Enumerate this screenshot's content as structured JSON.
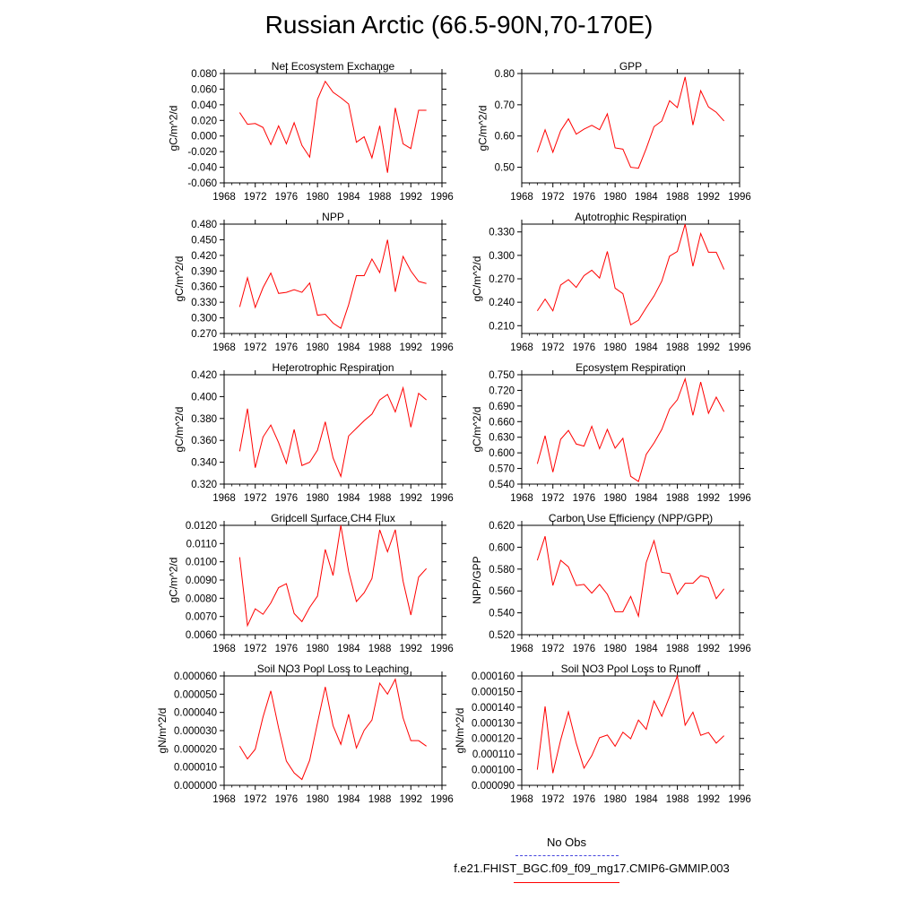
{
  "title": "Russian Arctic (66.5-90N,70-170E)",
  "legend": {
    "obs_label": "No Obs",
    "run_label": "f.e21.FHIST_BGC.f09_f09_mg17.CMIP6-GMMIP.003",
    "run_color": "#ff0000",
    "obs_color": "#4444dd"
  },
  "chart_data": [
    {
      "type": "line",
      "title": "Net Ecosystem Exchange",
      "ylabel": "gC/m^2/d",
      "xlim": [
        1968,
        1996
      ],
      "ylim": [
        -0.06,
        0.08
      ],
      "xticks": [
        "1968",
        "1972",
        "1976",
        "1980",
        "1984",
        "1988",
        "1992",
        "1996"
      ],
      "yticks": [
        "0.080",
        "0.060",
        "0.040",
        "0.020",
        "0.000",
        "-0.020",
        "-0.040",
        "-0.060"
      ],
      "x": [
        1970,
        1971,
        1972,
        1973,
        1974,
        1975,
        1976,
        1977,
        1978,
        1979,
        1980,
        1981,
        1982,
        1983,
        1984,
        1985,
        1986,
        1987,
        1988,
        1989,
        1990,
        1991,
        1992,
        1993,
        1994
      ],
      "series": [
        {
          "name": "f.e21.FHIST_BGC.f09_f09_mg17.CMIP6-GMMIP.003",
          "values": [
            0.03,
            0.015,
            0.016,
            0.011,
            -0.011,
            0.013,
            -0.01,
            0.017,
            -0.012,
            -0.027,
            0.047,
            0.07,
            0.056,
            0.049,
            0.041,
            -0.008,
            -0.001,
            -0.028,
            0.013,
            -0.047,
            0.036,
            -0.01,
            -0.016,
            0.033,
            0.033
          ]
        }
      ]
    },
    {
      "type": "line",
      "title": "GPP",
      "ylabel": "gC/m^2/d",
      "xlim": [
        1968,
        1996
      ],
      "ylim": [
        0.45,
        0.8
      ],
      "xticks": [
        "1968",
        "1972",
        "1976",
        "1980",
        "1984",
        "1988",
        "1992",
        "1996"
      ],
      "yticks": [
        "0.80",
        "0.70",
        "0.60",
        "0.50"
      ],
      "x": [
        1970,
        1971,
        1972,
        1973,
        1974,
        1975,
        1976,
        1977,
        1978,
        1979,
        1980,
        1981,
        1982,
        1983,
        1984,
        1985,
        1986,
        1987,
        1988,
        1989,
        1990,
        1991,
        1992,
        1993,
        1994
      ],
      "series": [
        {
          "name": "f.e21.FHIST_BGC.f09_f09_mg17.CMIP6-GMMIP.003",
          "values": [
            0.548,
            0.62,
            0.548,
            0.617,
            0.655,
            0.606,
            0.622,
            0.634,
            0.62,
            0.671,
            0.562,
            0.558,
            0.5,
            0.497,
            0.56,
            0.63,
            0.648,
            0.713,
            0.691,
            0.789,
            0.635,
            0.745,
            0.693,
            0.676,
            0.648
          ]
        }
      ]
    },
    {
      "type": "line",
      "title": "NPP",
      "ylabel": "gC/m^2/d",
      "xlim": [
        1968,
        1996
      ],
      "ylim": [
        0.27,
        0.48
      ],
      "xticks": [
        "1968",
        "1972",
        "1976",
        "1980",
        "1984",
        "1988",
        "1992",
        "1996"
      ],
      "yticks": [
        "0.480",
        "0.450",
        "0.420",
        "0.390",
        "0.360",
        "0.330",
        "0.300",
        "0.270"
      ],
      "x": [
        1970,
        1971,
        1972,
        1973,
        1974,
        1975,
        1976,
        1977,
        1978,
        1979,
        1980,
        1981,
        1982,
        1983,
        1984,
        1985,
        1986,
        1987,
        1988,
        1989,
        1990,
        1991,
        1992,
        1993,
        1994
      ],
      "series": [
        {
          "name": "f.e21.FHIST_BGC.f09_f09_mg17.CMIP6-GMMIP.003",
          "values": [
            0.321,
            0.377,
            0.32,
            0.358,
            0.386,
            0.347,
            0.349,
            0.354,
            0.349,
            0.367,
            0.305,
            0.307,
            0.29,
            0.28,
            0.325,
            0.381,
            0.381,
            0.413,
            0.387,
            0.45,
            0.35,
            0.418,
            0.39,
            0.37,
            0.366
          ]
        }
      ]
    },
    {
      "type": "line",
      "title": "Autotrophic Respiration",
      "ylabel": "gC/m^2/d",
      "xlim": [
        1968,
        1996
      ],
      "ylim": [
        0.2,
        0.34
      ],
      "xticks": [
        "1968",
        "1972",
        "1976",
        "1980",
        "1984",
        "1988",
        "1992",
        "1996"
      ],
      "yticks": [
        "0.330",
        "0.300",
        "0.270",
        "0.240",
        "0.210"
      ],
      "x": [
        1970,
        1971,
        1972,
        1973,
        1974,
        1975,
        1976,
        1977,
        1978,
        1979,
        1980,
        1981,
        1982,
        1983,
        1984,
        1985,
        1986,
        1987,
        1988,
        1989,
        1990,
        1991,
        1992,
        1993,
        1994
      ],
      "series": [
        {
          "name": "f.e21.FHIST_BGC.f09_f09_mg17.CMIP6-GMMIP.003",
          "values": [
            0.229,
            0.244,
            0.229,
            0.262,
            0.269,
            0.259,
            0.274,
            0.281,
            0.271,
            0.305,
            0.258,
            0.251,
            0.211,
            0.217,
            0.233,
            0.248,
            0.267,
            0.299,
            0.305,
            0.34,
            0.286,
            0.328,
            0.304,
            0.304,
            0.282
          ]
        }
      ]
    },
    {
      "type": "line",
      "title": "Heterotrophic Respiration",
      "ylabel": "gC/m^2/d",
      "xlim": [
        1968,
        1996
      ],
      "ylim": [
        0.32,
        0.42
      ],
      "xticks": [
        "1968",
        "1972",
        "1976",
        "1980",
        "1984",
        "1988",
        "1992",
        "1996"
      ],
      "yticks": [
        "0.420",
        "0.400",
        "0.380",
        "0.360",
        "0.340",
        "0.320"
      ],
      "x": [
        1970,
        1971,
        1972,
        1973,
        1974,
        1975,
        1976,
        1977,
        1978,
        1979,
        1980,
        1981,
        1982,
        1983,
        1984,
        1985,
        1986,
        1987,
        1988,
        1989,
        1990,
        1991,
        1992,
        1993,
        1994
      ],
      "series": [
        {
          "name": "f.e21.FHIST_BGC.f09_f09_mg17.CMIP6-GMMIP.003",
          "values": [
            0.35,
            0.389,
            0.335,
            0.363,
            0.374,
            0.358,
            0.339,
            0.37,
            0.337,
            0.34,
            0.351,
            0.377,
            0.344,
            0.327,
            0.364,
            0.371,
            0.378,
            0.384,
            0.397,
            0.402,
            0.386,
            0.408,
            0.372,
            0.403,
            0.397
          ]
        }
      ]
    },
    {
      "type": "line",
      "title": "Ecosystem Respiration",
      "ylabel": "gC/m^2/d",
      "xlim": [
        1968,
        1996
      ],
      "ylim": [
        0.54,
        0.75
      ],
      "xticks": [
        "1968",
        "1972",
        "1976",
        "1980",
        "1984",
        "1988",
        "1992",
        "1996"
      ],
      "yticks": [
        "0.750",
        "0.720",
        "0.690",
        "0.660",
        "0.630",
        "0.600",
        "0.570",
        "0.540"
      ],
      "x": [
        1970,
        1971,
        1972,
        1973,
        1974,
        1975,
        1976,
        1977,
        1978,
        1979,
        1980,
        1981,
        1982,
        1983,
        1984,
        1985,
        1986,
        1987,
        1988,
        1989,
        1990,
        1991,
        1992,
        1993,
        1994
      ],
      "series": [
        {
          "name": "f.e21.FHIST_BGC.f09_f09_mg17.CMIP6-GMMIP.003",
          "values": [
            0.579,
            0.633,
            0.563,
            0.626,
            0.643,
            0.617,
            0.613,
            0.651,
            0.608,
            0.645,
            0.609,
            0.628,
            0.555,
            0.545,
            0.597,
            0.619,
            0.645,
            0.684,
            0.702,
            0.742,
            0.672,
            0.736,
            0.676,
            0.707,
            0.679
          ]
        }
      ]
    },
    {
      "type": "line",
      "title": "Gridcell Surface CH4 Flux",
      "ylabel": "gC/m^2/d",
      "xlim": [
        1968,
        1996
      ],
      "ylim": [
        0.006,
        0.012
      ],
      "xticks": [
        "1968",
        "1972",
        "1976",
        "1980",
        "1984",
        "1988",
        "1992",
        "1996"
      ],
      "yticks": [
        "0.0120",
        "0.0110",
        "0.0100",
        "0.0090",
        "0.0080",
        "0.0070",
        "0.0060"
      ],
      "x": [
        1970,
        1971,
        1972,
        1973,
        1974,
        1975,
        1976,
        1977,
        1978,
        1979,
        1980,
        1981,
        1982,
        1983,
        1984,
        1985,
        1986,
        1987,
        1988,
        1989,
        1990,
        1991,
        1992,
        1993,
        1994
      ],
      "series": [
        {
          "name": "f.e21.FHIST_BGC.f09_f09_mg17.CMIP6-GMMIP.003",
          "values": [
            0.01025,
            0.0065,
            0.00742,
            0.00712,
            0.00774,
            0.00858,
            0.0088,
            0.00716,
            0.00672,
            0.0075,
            0.00812,
            0.01068,
            0.00925,
            0.012,
            0.00947,
            0.00782,
            0.0083,
            0.00908,
            0.01175,
            0.01055,
            0.01176,
            0.00894,
            0.00708,
            0.00916,
            0.00963
          ]
        }
      ]
    },
    {
      "type": "line",
      "title": "Carbon Use Efficiency (NPP/GPP)",
      "ylabel": "NPP/GPP",
      "xlim": [
        1968,
        1996
      ],
      "ylim": [
        0.52,
        0.62
      ],
      "xticks": [
        "1968",
        "1972",
        "1976",
        "1980",
        "1984",
        "1988",
        "1992",
        "1996"
      ],
      "yticks": [
        "0.620",
        "0.600",
        "0.580",
        "0.560",
        "0.540",
        "0.520"
      ],
      "x": [
        1970,
        1971,
        1972,
        1973,
        1974,
        1975,
        1976,
        1977,
        1978,
        1979,
        1980,
        1981,
        1982,
        1983,
        1984,
        1985,
        1986,
        1987,
        1988,
        1989,
        1990,
        1991,
        1992,
        1993,
        1994
      ],
      "series": [
        {
          "name": "f.e21.FHIST_BGC.f09_f09_mg17.CMIP6-GMMIP.003",
          "values": [
            0.588,
            0.61,
            0.565,
            0.588,
            0.582,
            0.565,
            0.566,
            0.558,
            0.566,
            0.557,
            0.541,
            0.541,
            0.555,
            0.537,
            0.586,
            0.606,
            0.577,
            0.576,
            0.557,
            0.567,
            0.567,
            0.574,
            0.572,
            0.553,
            0.562
          ]
        }
      ]
    },
    {
      "type": "line",
      "title": "Soil NO3 Pool Loss to Leaching",
      "ylabel": "gN/m^2/d",
      "xlim": [
        1968,
        1996
      ],
      "ylim": [
        0.0,
        6e-05
      ],
      "xticks": [
        "1968",
        "1972",
        "1976",
        "1980",
        "1984",
        "1988",
        "1992",
        "1996"
      ],
      "yticks": [
        "0.000060",
        "0.000050",
        "0.000040",
        "0.000030",
        "0.000020",
        "0.000010",
        "0.000000"
      ],
      "x": [
        1970,
        1971,
        1972,
        1973,
        1974,
        1975,
        1976,
        1977,
        1978,
        1979,
        1980,
        1981,
        1982,
        1983,
        1984,
        1985,
        1986,
        1987,
        1988,
        1989,
        1990,
        1991,
        1992,
        1993,
        1994
      ],
      "series": [
        {
          "name": "f.e21.FHIST_BGC.f09_f09_mg17.CMIP6-GMMIP.003",
          "values": [
            2.15e-05,
            1.45e-05,
            1.98e-05,
            3.75e-05,
            5.18e-05,
            3.15e-05,
            1.33e-05,
            6.8e-06,
            3.2e-06,
            1.38e-05,
            3.42e-05,
            5.4e-05,
            3.27e-05,
            2.25e-05,
            3.9e-05,
            2.05e-05,
            3.02e-05,
            3.58e-05,
            5.6e-05,
            5e-05,
            5.82e-05,
            3.7e-05,
            2.45e-05,
            2.45e-05,
            2.15e-05
          ]
        }
      ]
    },
    {
      "type": "line",
      "title": "Soil NO3 Pool Loss to Runoff",
      "ylabel": "gN/m^2/d",
      "xlim": [
        1968,
        1996
      ],
      "ylim": [
        9e-05,
        0.00016
      ],
      "xticks": [
        "1968",
        "1972",
        "1976",
        "1980",
        "1984",
        "1988",
        "1992",
        "1996"
      ],
      "yticks": [
        "0.000160",
        "0.000150",
        "0.000140",
        "0.000130",
        "0.000120",
        "0.000110",
        "0.000100",
        "0.000090"
      ],
      "x": [
        1970,
        1971,
        1972,
        1973,
        1974,
        1975,
        1976,
        1977,
        1978,
        1979,
        1980,
        1981,
        1982,
        1983,
        1984,
        1985,
        1986,
        1987,
        1988,
        1989,
        1990,
        1991,
        1992,
        1993,
        1994
      ],
      "series": [
        {
          "name": "f.e21.FHIST_BGC.f09_f09_mg17.CMIP6-GMMIP.003",
          "values": [
            0.0001,
            0.0001405,
            9.78e-05,
            0.000119,
            0.000137,
            0.000117,
            0.000101,
            0.000109,
            0.0001205,
            0.0001222,
            0.000115,
            0.000124,
            0.0001198,
            0.0001318,
            0.0001258,
            0.000144,
            0.0001342,
            0.0001468,
            0.00016,
            0.0001285,
            0.0001368,
            0.000122,
            0.0001238,
            0.000117,
            0.0001218
          ]
        }
      ]
    }
  ]
}
